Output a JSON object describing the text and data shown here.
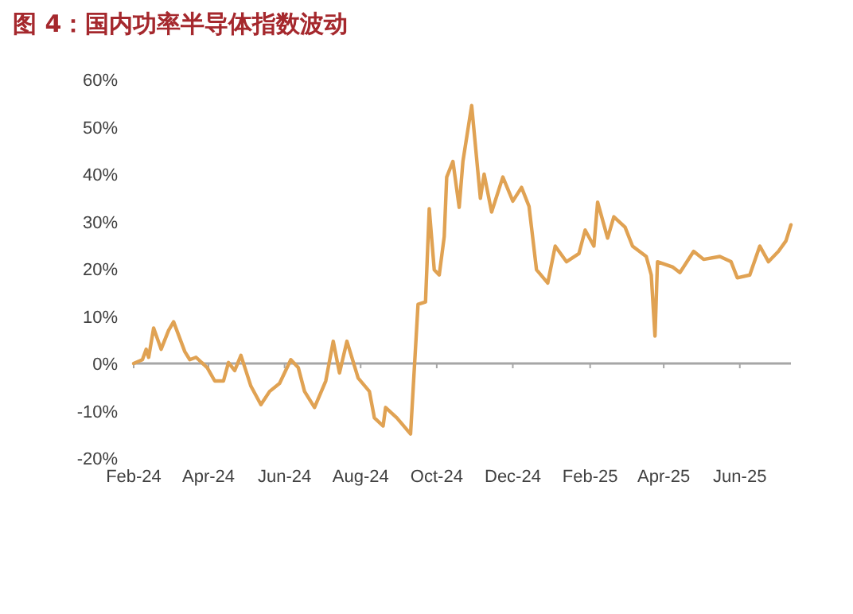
{
  "chart_data": {
    "type": "line",
    "title": "图 4：国内功率半导体指数波动",
    "x": [
      "2024-02-01",
      "2024-02-08",
      "2024-02-11",
      "2024-02-13",
      "2024-02-17",
      "2024-02-23",
      "2024-02-29",
      "2024-03-04",
      "2024-03-13",
      "2024-03-17",
      "2024-03-22",
      "2024-03-31",
      "2024-04-06",
      "2024-04-13",
      "2024-04-17",
      "2024-04-22",
      "2024-04-27",
      "2024-05-05",
      "2024-05-13",
      "2024-05-20",
      "2024-05-28",
      "2024-06-06",
      "2024-06-12",
      "2024-06-17",
      "2024-06-25",
      "2024-07-04",
      "2024-07-10",
      "2024-07-15",
      "2024-07-21",
      "2024-07-30",
      "2024-08-08",
      "2024-08-12",
      "2024-08-19",
      "2024-08-21",
      "2024-08-30",
      "2024-09-10",
      "2024-09-16",
      "2024-09-22",
      "2024-09-25",
      "2024-09-29",
      "2024-10-03",
      "2024-10-07",
      "2024-10-09",
      "2024-10-14",
      "2024-10-19",
      "2024-10-22",
      "2024-10-29",
      "2024-11-05",
      "2024-11-08",
      "2024-11-14",
      "2024-11-23",
      "2024-12-01",
      "2024-12-08",
      "2024-12-14",
      "2024-12-20",
      "2024-12-29",
      "2025-01-04",
      "2025-01-13",
      "2025-01-23",
      "2025-01-28",
      "2025-02-04",
      "2025-02-07",
      "2025-02-15",
      "2025-02-20",
      "2025-03-01",
      "2025-03-07",
      "2025-03-18",
      "2025-03-22",
      "2025-03-25",
      "2025-03-27",
      "2025-04-08",
      "2025-04-14",
      "2025-04-25",
      "2025-05-03",
      "2025-05-16",
      "2025-05-25",
      "2025-05-30",
      "2025-06-09",
      "2025-06-17",
      "2025-06-24",
      "2025-07-02",
      "2025-07-08",
      "2025-07-12"
    ],
    "series": [
      {
        "color": "#e0a253",
        "values": [
          0,
          0.8,
          3,
          1.3,
          7.5,
          3,
          7,
          8.8,
          2.5,
          0.8,
          1.3,
          -0.9,
          -3.7,
          -3.7,
          0.2,
          -1.5,
          1.7,
          -4.8,
          -8.7,
          -5.9,
          -4.2,
          0.8,
          -0.9,
          -5.9,
          -9.3,
          -3.7,
          4.7,
          -2,
          4.7,
          -3.1,
          -5.9,
          -11.5,
          -13.2,
          -9.3,
          -11.5,
          -14.9,
          12.5,
          13,
          32.7,
          19.8,
          18.7,
          26.8,
          39.4,
          42.7,
          33,
          42.7,
          54.5,
          34.9,
          40,
          32,
          39.4,
          34.3,
          37.2,
          33.2,
          19.8,
          17,
          24.8,
          21.5,
          23.2,
          28.2,
          24.8,
          34.1,
          26.5,
          31,
          28.8,
          24.8,
          22.6,
          18.7,
          5.8,
          21.5,
          20.4,
          19.2,
          23.7,
          22,
          22.6,
          21.5,
          18.1,
          18.7,
          24.8,
          21.5,
          23.7,
          25.9,
          29.3
        ]
      }
    ],
    "xlim": [
      "2024-02-01",
      "2025-07-12"
    ],
    "xticks": [
      {
        "value": "2024-02-01",
        "label": "Feb-24"
      },
      {
        "value": "2024-04-01",
        "label": "Apr-24"
      },
      {
        "value": "2024-06-01",
        "label": "Jun-24"
      },
      {
        "value": "2024-08-01",
        "label": "Aug-24"
      },
      {
        "value": "2024-10-01",
        "label": "Oct-24"
      },
      {
        "value": "2024-12-01",
        "label": "Dec-24"
      },
      {
        "value": "2025-02-01",
        "label": "Feb-25"
      },
      {
        "value": "2025-04-01",
        "label": "Apr-25"
      },
      {
        "value": "2025-06-01",
        "label": "Jun-25"
      }
    ],
    "ylim": [
      -20,
      60
    ],
    "yticks": [
      {
        "value": -20,
        "label": "-20%"
      },
      {
        "value": -10,
        "label": "-10%"
      },
      {
        "value": 0,
        "label": "0%"
      },
      {
        "value": 10,
        "label": "10%"
      },
      {
        "value": 20,
        "label": "20%"
      },
      {
        "value": 30,
        "label": "30%"
      },
      {
        "value": 40,
        "label": "40%"
      },
      {
        "value": 50,
        "label": "50%"
      },
      {
        "value": 60,
        "label": "60%"
      }
    ],
    "marker": "none",
    "line_style": "solid"
  }
}
